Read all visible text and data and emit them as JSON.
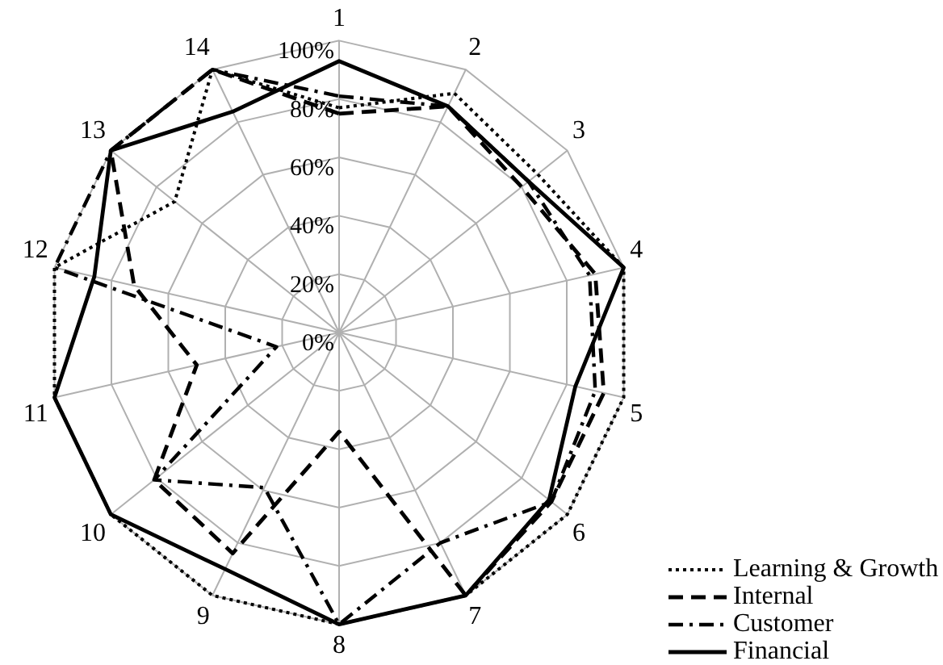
{
  "chart_data": {
    "type": "radar",
    "categories": [
      "1",
      "2",
      "3",
      "4",
      "5",
      "6",
      "7",
      "8",
      "9",
      "10",
      "11",
      "12",
      "13",
      "14"
    ],
    "ylim": [
      0,
      100
    ],
    "yticks": [
      {
        "value": 0,
        "label": "0%"
      },
      {
        "value": 20,
        "label": "20%"
      },
      {
        "value": 40,
        "label": "40%"
      },
      {
        "value": 60,
        "label": "60%"
      },
      {
        "value": 80,
        "label": "80%"
      },
      {
        "value": 100,
        "label": "100%"
      }
    ],
    "grid": true,
    "legend": "bottom right",
    "marker": "none",
    "series": [
      {
        "name": "Learning & Growth",
        "color": "#000000",
        "line_style": "dotted",
        "values": [
          77,
          91,
          87,
          100,
          100,
          100,
          100,
          100,
          100,
          100,
          100,
          100,
          72,
          100
        ]
      },
      {
        "name": "Internal",
        "color": "#000000",
        "line_style": "dashed",
        "values": [
          75,
          86,
          80,
          90,
          93,
          93,
          100,
          34,
          84,
          81,
          50,
          72,
          100,
          100
        ]
      },
      {
        "name": "Customer",
        "color": "#000000",
        "line_style": "dashdot",
        "values": [
          81,
          86,
          83,
          88,
          90,
          93,
          80,
          100,
          59,
          81,
          22,
          100,
          100,
          100
        ]
      },
      {
        "name": "Financial",
        "color": "#000000",
        "line_style": "solid",
        "values": [
          93,
          86,
          83,
          100,
          83,
          92,
          100,
          100,
          90,
          100,
          100,
          86,
          100,
          84
        ]
      }
    ]
  }
}
